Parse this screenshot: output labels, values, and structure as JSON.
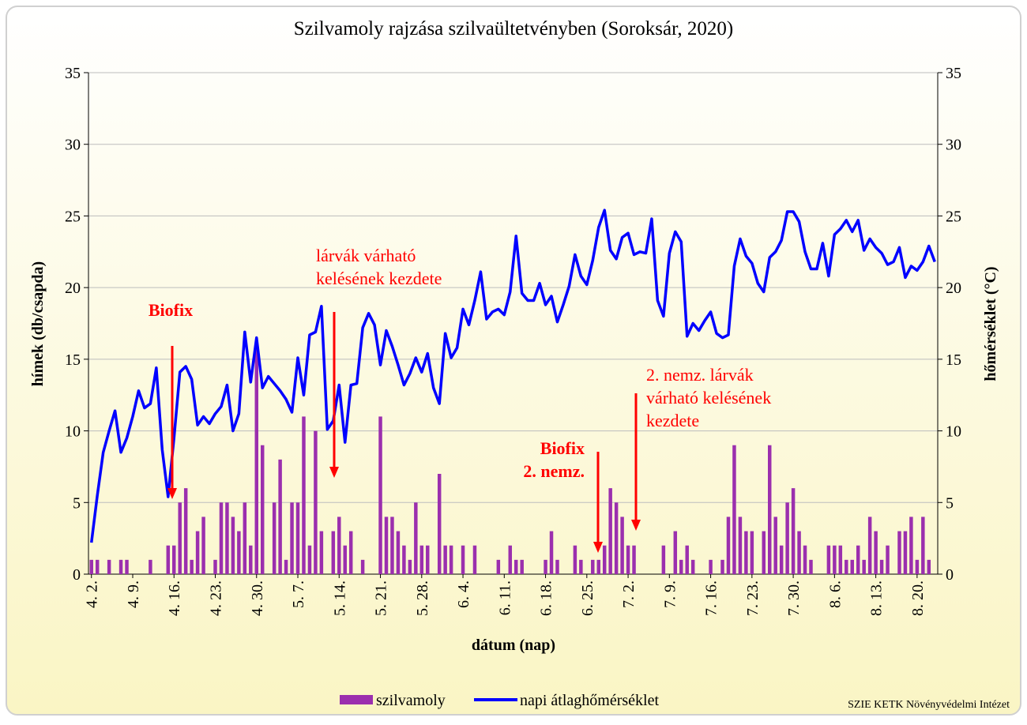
{
  "chart_data": {
    "type": "bar-line",
    "title": "Szilvamoly rajzása szilvaültetvényben (Soroksár, 2020)",
    "x_label": "dátum (nap)",
    "y_label": "hímek  (db/csapda)",
    "y2_label": "hőmérséklet (°C)",
    "footer": "SZIE KETK Növényvédelmi Intézet",
    "categories": [
      "4. 2.",
      null,
      null,
      null,
      null,
      null,
      null,
      "4. 9.",
      null,
      null,
      null,
      null,
      null,
      null,
      "4. 16.",
      null,
      null,
      null,
      null,
      null,
      null,
      "4. 23.",
      null,
      null,
      null,
      null,
      null,
      null,
      "4. 30.",
      null,
      null,
      null,
      null,
      null,
      null,
      "5. 7.",
      null,
      null,
      null,
      null,
      null,
      null,
      "5. 14.",
      null,
      null,
      null,
      null,
      null,
      null,
      "5. 21.",
      null,
      null,
      null,
      null,
      null,
      null,
      "5. 28.",
      null,
      null,
      null,
      null,
      null,
      null,
      "6. 4.",
      null,
      null,
      null,
      null,
      null,
      null,
      "6. 11.",
      null,
      null,
      null,
      null,
      null,
      null,
      "6. 18.",
      null,
      null,
      null,
      null,
      null,
      null,
      "6. 25.",
      null,
      null,
      null,
      null,
      null,
      null,
      "7. 2.",
      null,
      null,
      null,
      null,
      null,
      null,
      "7. 9.",
      null,
      null,
      null,
      null,
      null,
      null,
      "7. 16.",
      null,
      null,
      null,
      null,
      null,
      null,
      "7. 23.",
      null,
      null,
      null,
      null,
      null,
      null,
      "7. 30.",
      null,
      null,
      null,
      null,
      null,
      null,
      "8. 6.",
      null,
      null,
      null,
      null,
      null,
      null,
      "8. 13.",
      null,
      null,
      null,
      null,
      null,
      null,
      "8. 20.",
      null,
      null,
      null
    ],
    "series": [
      {
        "name": "szilvamoly",
        "type": "bar",
        "color": "#9b2fae",
        "values": [
          1,
          1,
          0,
          1,
          0,
          1,
          1,
          0,
          0,
          0,
          1,
          0,
          0,
          2,
          2,
          5,
          6,
          1,
          3,
          4,
          0,
          1,
          5,
          5,
          4,
          3,
          5,
          2,
          16,
          9,
          0,
          5,
          8,
          1,
          5,
          5,
          11,
          2,
          10,
          3,
          0,
          3,
          4,
          2,
          3,
          0,
          1,
          0,
          0,
          11,
          4,
          4,
          3,
          2,
          1,
          5,
          2,
          2,
          0,
          7,
          2,
          2,
          0,
          2,
          0,
          2,
          0,
          0,
          0,
          1,
          0,
          2,
          1,
          1,
          0,
          0,
          0,
          1,
          3,
          1,
          0,
          0,
          2,
          1,
          0,
          1,
          1,
          2,
          6,
          5,
          4,
          2,
          2,
          0,
          0,
          0,
          0,
          2,
          0,
          3,
          1,
          2,
          1,
          0,
          0,
          1,
          0,
          1,
          4,
          9,
          4,
          3,
          3,
          0,
          3,
          9,
          4,
          2,
          5,
          6,
          3,
          2,
          1,
          0,
          0,
          2,
          2,
          2,
          1,
          1,
          2,
          1,
          4,
          3,
          1,
          2,
          0,
          3,
          3,
          4,
          1,
          4,
          1,
          0
        ]
      },
      {
        "name": "napi átlaghőmérséklet",
        "type": "line",
        "axis": "y2",
        "color": "#0000ff",
        "values": [
          2.2,
          5.5,
          8.5,
          10,
          11.4,
          8.5,
          9.5,
          11,
          12.8,
          11.6,
          11.9,
          14.4,
          8.7,
          5.4,
          9.5,
          14.1,
          14.5,
          13.6,
          10.4,
          11,
          10.5,
          11.2,
          11.7,
          13.2,
          10,
          11.2,
          16.9,
          13.4,
          16.5,
          13,
          13.8,
          13.3,
          12.8,
          12.2,
          11.3,
          15.1,
          12.5,
          16.7,
          16.9,
          18.7,
          10.1,
          10.7,
          13.2,
          9.2,
          13.2,
          13.3,
          17.2,
          18.2,
          17.4,
          14.6,
          17,
          15.9,
          14.6,
          13.2,
          14,
          15.1,
          14.1,
          15.4,
          13,
          11.9,
          16.8,
          15.1,
          15.8,
          18.5,
          17.4,
          19.1,
          21.1,
          17.8,
          18.3,
          18.5,
          18.1,
          19.7,
          23.6,
          19.6,
          19.1,
          19.1,
          20.3,
          18.8,
          19.4,
          17.6,
          18.8,
          20.1,
          22.3,
          20.8,
          20.2,
          21.9,
          24.2,
          25.4,
          22.6,
          22,
          23.5,
          23.8,
          22.3,
          22.5,
          22.4,
          24.8,
          19.1,
          18,
          22.4,
          23.9,
          23.2,
          16.6,
          17.5,
          17,
          17.7,
          18.3,
          16.8,
          16.5,
          16.7,
          21.5,
          23.4,
          22.2,
          21.7,
          20.3,
          19.7,
          22.1,
          22.5,
          23.3,
          25.3,
          25.3,
          24.6,
          22.5,
          21.3,
          21.3,
          23.1,
          20.8,
          23.7,
          24.1,
          24.7,
          23.9,
          24.7,
          22.6,
          23.4,
          22.8,
          22.4,
          21.6,
          21.8,
          22.8,
          20.7,
          21.5,
          21.2,
          21.8,
          22.9,
          21.8
        ]
      }
    ],
    "ylim": [
      0,
      35
    ],
    "yticks": [
      0,
      5,
      10,
      15,
      20,
      25,
      30,
      35
    ],
    "y2lim": [
      0,
      35
    ],
    "y2ticks": [
      0,
      5,
      10,
      15,
      20,
      25,
      30,
      35
    ],
    "grid": true,
    "legend": "bottom",
    "annotations": [
      {
        "lines": [
          "Biofix"
        ],
        "bold": true,
        "color": "#ff0000"
      },
      {
        "lines": [
          "lárvák várható",
          "kelésének kezdete"
        ],
        "bold": false,
        "color": "#ff0000"
      },
      {
        "lines": [
          "Biofix",
          "2. nemz."
        ],
        "bold": true,
        "color": "#ff0000"
      },
      {
        "lines": [
          "2. nemz. lárvák",
          "várható kelésének",
          "kezdete"
        ],
        "bold": false,
        "color": "#ff0000"
      }
    ]
  }
}
